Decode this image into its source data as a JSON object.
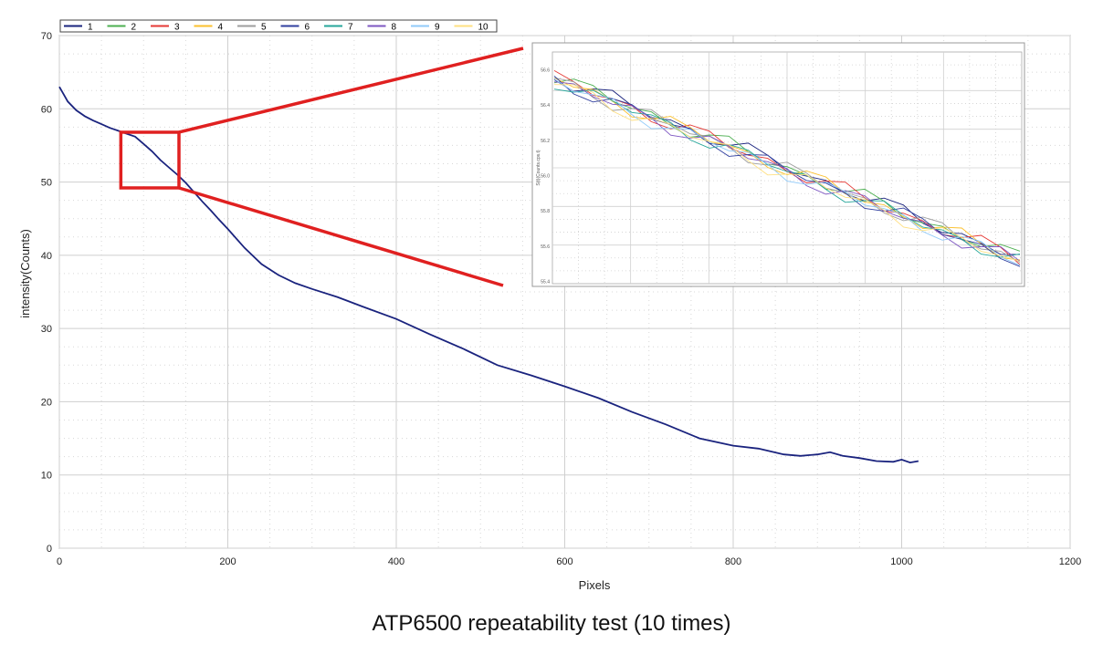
{
  "caption": "ATP6500 repeatability test (10 times)",
  "chart_data": {
    "type": "line",
    "xlabel": "Pixels",
    "ylabel": "intensity(Counts)",
    "xlim": [
      0,
      1200
    ],
    "ylim": [
      0,
      70
    ],
    "xticks": [
      0,
      200,
      400,
      600,
      800,
      1000,
      1200
    ],
    "yticks": [
      0,
      10,
      20,
      30,
      40,
      50,
      60,
      70
    ],
    "grid": true,
    "legend": "top-left",
    "series": [
      {
        "name": "1",
        "color": "#1a237e"
      },
      {
        "name": "2",
        "color": "#4caf50"
      },
      {
        "name": "3",
        "color": "#e53935"
      },
      {
        "name": "4",
        "color": "#fbc02d"
      },
      {
        "name": "5",
        "color": "#9e9e9e"
      },
      {
        "name": "6",
        "color": "#303f9f"
      },
      {
        "name": "7",
        "color": "#26a69a"
      },
      {
        "name": "8",
        "color": "#7e57c2"
      },
      {
        "name": "9",
        "color": "#90caf9"
      },
      {
        "name": "10",
        "color": "#ffe082"
      }
    ],
    "curve": {
      "x": [
        0,
        5,
        10,
        20,
        30,
        40,
        50,
        60,
        70,
        80,
        90,
        100,
        110,
        120,
        130,
        140,
        150,
        160,
        170,
        180,
        190,
        200,
        220,
        240,
        260,
        280,
        300,
        330,
        360,
        400,
        440,
        480,
        520,
        560,
        600,
        640,
        680,
        720,
        760,
        800,
        830,
        860,
        880,
        900,
        915,
        930,
        950,
        970,
        990,
        1000,
        1010,
        1020
      ],
      "y": [
        63,
        62,
        61,
        59.8,
        59,
        58.4,
        57.9,
        57.4,
        57,
        56.6,
        56.2,
        55.2,
        54.2,
        53,
        52,
        51,
        49.9,
        48.6,
        47.3,
        46.1,
        44.8,
        43.6,
        41,
        38.8,
        37.3,
        36.2,
        35.4,
        34.3,
        33,
        31.3,
        29.2,
        27.2,
        25,
        23.6,
        22.1,
        20.5,
        18.6,
        16.9,
        15,
        14,
        13.6,
        12.8,
        12.6,
        12.8,
        13.1,
        12.6,
        12.3,
        11.9,
        11.8,
        12.1,
        11.7,
        11.9
      ]
    },
    "zoom_box": {
      "x": [
        73,
        142
      ],
      "y": [
        49.2,
        56.8
      ]
    },
    "inset": {
      "ylabel": "S(t)(Counts.cps.t)",
      "yticks": [
        "56.6",
        "56.4",
        "56.2",
        "56.0",
        "55.8",
        "55.6",
        "55.4"
      ]
    }
  }
}
